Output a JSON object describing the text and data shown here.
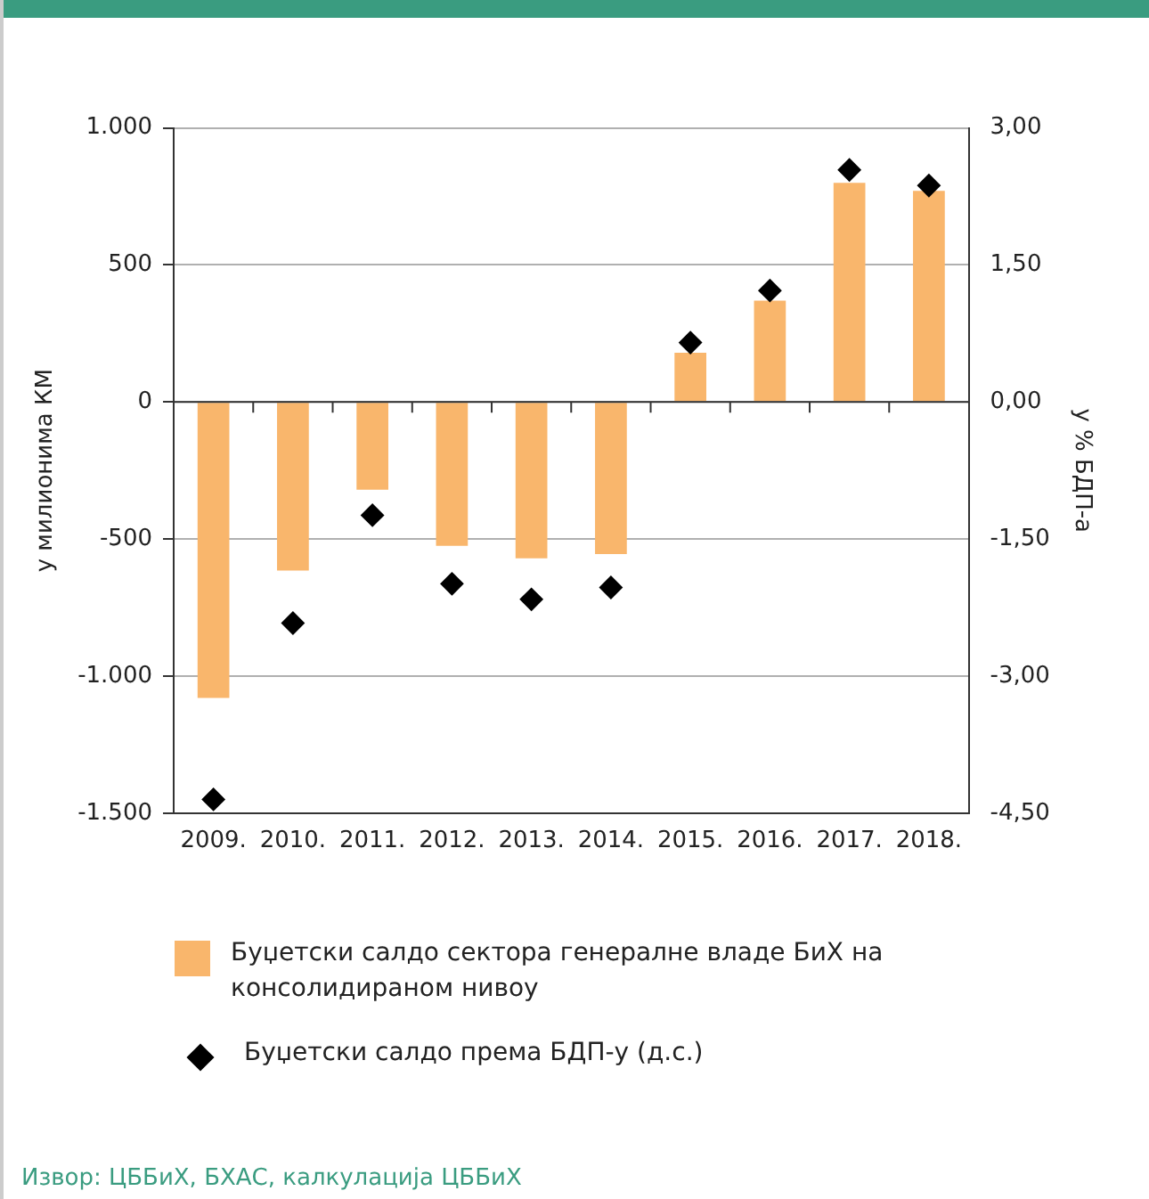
{
  "chart_data": {
    "type": "bar",
    "ylabel": "у милионима КМ",
    "y2label": "у % БДП-а",
    "categories": [
      "2009.",
      "2010.",
      "2011.",
      "2012.",
      "2013.",
      "2014.",
      "2015.",
      "2016.",
      "2017.",
      "2018."
    ],
    "series": [
      {
        "name": "Буџетски салдо сектора генералне владе БиХ на консолидираном нивоу",
        "color": "#f9b66c",
        "values": [
          -1080,
          -615,
          -320,
          -525,
          -570,
          -555,
          180,
          370,
          800,
          770
        ]
      },
      {
        "name": "Буџетски салдо према БДП-у (д.с.)",
        "type": "scatter",
        "axis": "y2",
        "marker": "diamond",
        "color": "#000000",
        "values": [
          -4.35,
          -2.42,
          -1.24,
          -1.99,
          -2.16,
          -2.03,
          0.65,
          1.22,
          2.54,
          2.37
        ]
      }
    ],
    "ylim": [
      -1500,
      1000
    ],
    "yticks": [
      {
        "value": -1500,
        "label": "-1.500"
      },
      {
        "value": -1000,
        "label": "-1.000"
      },
      -500,
      0,
      500,
      {
        "value": 1000,
        "label": "1.000"
      }
    ],
    "y2lim": [
      -4.5,
      3
    ],
    "y2ticks": [
      {
        "value": -4.5,
        "label": "-4,50"
      },
      {
        "value": -3,
        "label": "-3,00"
      },
      {
        "value": -1.5,
        "label": "-1,50"
      },
      {
        "value": 0,
        "label": "0,00"
      },
      {
        "value": 1.5,
        "label": "1,50"
      },
      {
        "value": 3,
        "label": "3,00"
      }
    ],
    "grid": "y",
    "legend": "bottom",
    "annotations": [
      "Извор: ЦББиХ, БХАС, калкулација ЦББиХ"
    ]
  }
}
